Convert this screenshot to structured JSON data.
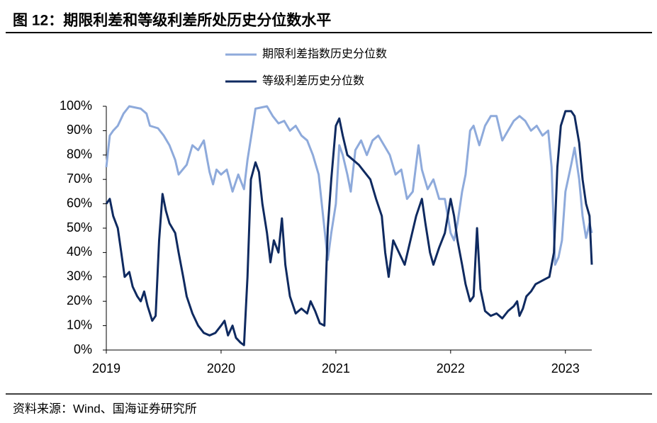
{
  "chart_data": {
    "type": "line",
    "title": "图 12：期限利差和等级利差所处历史分位数水平",
    "source": "资料来源：Wind、国海证券研究所",
    "xlim": [
      2019,
      2023.23
    ],
    "xticks": [
      2019,
      2020,
      2021,
      2022,
      2023
    ],
    "ylim": [
      0,
      100
    ],
    "yticks": [
      {
        "value": 0,
        "label": "0%"
      },
      {
        "value": 10,
        "label": "10%"
      },
      {
        "value": 20,
        "label": "20%"
      },
      {
        "value": 30,
        "label": "30%"
      },
      {
        "value": 40,
        "label": "40%"
      },
      {
        "value": 50,
        "label": "50%"
      },
      {
        "value": 60,
        "label": "60%"
      },
      {
        "value": 70,
        "label": "70%"
      },
      {
        "value": 80,
        "label": "80%"
      },
      {
        "value": 90,
        "label": "90%"
      },
      {
        "value": 100,
        "label": "100%"
      }
    ],
    "grid": false,
    "series": [
      {
        "name": "期限利差指数历史分位数",
        "color": "#8eaadb",
        "x": [
          2019.0,
          2019.03,
          2019.06,
          2019.1,
          2019.15,
          2019.2,
          2019.3,
          2019.35,
          2019.38,
          2019.45,
          2019.5,
          2019.55,
          2019.6,
          2019.63,
          2019.7,
          2019.75,
          2019.8,
          2019.85,
          2019.88,
          2019.9,
          2019.93,
          2019.96,
          2020.0,
          2020.05,
          2020.1,
          2020.15,
          2020.2,
          2020.23,
          2020.27,
          2020.3,
          2020.4,
          2020.45,
          2020.5,
          2020.55,
          2020.6,
          2020.65,
          2020.7,
          2020.75,
          2020.8,
          2020.85,
          2020.9,
          2020.93,
          2020.96,
          2021.0,
          2021.03,
          2021.06,
          2021.1,
          2021.13,
          2021.17,
          2021.22,
          2021.27,
          2021.32,
          2021.37,
          2021.42,
          2021.47,
          2021.52,
          2021.57,
          2021.62,
          2021.67,
          2021.72,
          2021.75,
          2021.8,
          2021.85,
          2021.9,
          2021.95,
          2022.0,
          2022.03,
          2022.06,
          2022.1,
          2022.13,
          2022.17,
          2022.2,
          2022.25,
          2022.3,
          2022.35,
          2022.4,
          2022.45,
          2022.5,
          2022.55,
          2022.6,
          2022.65,
          2022.7,
          2022.75,
          2022.8,
          2022.85,
          2022.88,
          2022.91,
          2022.94,
          2022.97,
          2023.0,
          2023.05,
          2023.08,
          2023.12,
          2023.15,
          2023.18,
          2023.21,
          2023.23
        ],
        "values": [
          75,
          88,
          90,
          92,
          97,
          100,
          99,
          97,
          92,
          91,
          88,
          84,
          78,
          72,
          76,
          84,
          82,
          86,
          78,
          73,
          68,
          74,
          72,
          74,
          65,
          72,
          66,
          78,
          90,
          99,
          100,
          96,
          93,
          94,
          90,
          92,
          88,
          86,
          80,
          72,
          50,
          37,
          48,
          60,
          84,
          80,
          72,
          65,
          82,
          86,
          80,
          86,
          88,
          84,
          80,
          72,
          74,
          62,
          65,
          84,
          74,
          66,
          70,
          62,
          62,
          48,
          45,
          52,
          65,
          72,
          90,
          92,
          84,
          92,
          96,
          96,
          86,
          90,
          94,
          96,
          94,
          90,
          92,
          88,
          90,
          75,
          35,
          38,
          45,
          65,
          76,
          83,
          70,
          55,
          46,
          52,
          48
        ]
      },
      {
        "name": "等级利差历史分位数",
        "color": "#0f2a60",
        "x": [
          2019.0,
          2019.03,
          2019.06,
          2019.1,
          2019.13,
          2019.16,
          2019.2,
          2019.23,
          2019.27,
          2019.3,
          2019.33,
          2019.36,
          2019.4,
          2019.43,
          2019.46,
          2019.49,
          2019.52,
          2019.55,
          2019.6,
          2019.63,
          2019.67,
          2019.7,
          2019.75,
          2019.8,
          2019.85,
          2019.9,
          2019.95,
          2020.0,
          2020.03,
          2020.06,
          2020.1,
          2020.13,
          2020.17,
          2020.2,
          2020.23,
          2020.26,
          2020.3,
          2020.33,
          2020.36,
          2020.4,
          2020.43,
          2020.46,
          2020.5,
          2020.53,
          2020.56,
          2020.6,
          2020.65,
          2020.7,
          2020.75,
          2020.78,
          2020.82,
          2020.86,
          2020.9,
          2020.93,
          2020.96,
          2021.0,
          2021.03,
          2021.06,
          2021.1,
          2021.15,
          2021.2,
          2021.25,
          2021.3,
          2021.35,
          2021.4,
          2021.43,
          2021.46,
          2021.5,
          2021.55,
          2021.6,
          2021.65,
          2021.7,
          2021.75,
          2021.78,
          2021.82,
          2021.85,
          2021.9,
          2021.95,
          2022.0,
          2022.03,
          2022.06,
          2022.1,
          2022.13,
          2022.17,
          2022.2,
          2022.23,
          2022.26,
          2022.3,
          2022.35,
          2022.4,
          2022.45,
          2022.5,
          2022.55,
          2022.58,
          2022.6,
          2022.63,
          2022.66,
          2022.7,
          2022.74,
          2022.78,
          2022.82,
          2022.86,
          2022.9,
          2022.93,
          2022.96,
          2023.0,
          2023.05,
          2023.08,
          2023.12,
          2023.15,
          2023.18,
          2023.21,
          2023.23
        ],
        "values": [
          60,
          62,
          55,
          50,
          40,
          30,
          32,
          26,
          22,
          20,
          24,
          18,
          12,
          14,
          45,
          64,
          57,
          52,
          48,
          40,
          30,
          22,
          15,
          10,
          7,
          6,
          7,
          10,
          12,
          6,
          10,
          5,
          3,
          2,
          30,
          70,
          77,
          73,
          60,
          48,
          36,
          45,
          40,
          54,
          35,
          22,
          15,
          17,
          15,
          20,
          16,
          11,
          10,
          50,
          70,
          92,
          95,
          88,
          80,
          78,
          76,
          73,
          70,
          62,
          55,
          40,
          30,
          45,
          40,
          35,
          45,
          55,
          62,
          52,
          40,
          35,
          42,
          48,
          62,
          55,
          45,
          35,
          27,
          20,
          22,
          50,
          25,
          16,
          14,
          15,
          13,
          16,
          18,
          20,
          14,
          17,
          22,
          24,
          27,
          28,
          29,
          30,
          40,
          75,
          92,
          98,
          98,
          96,
          85,
          70,
          60,
          55,
          35
        ]
      }
    ]
  }
}
